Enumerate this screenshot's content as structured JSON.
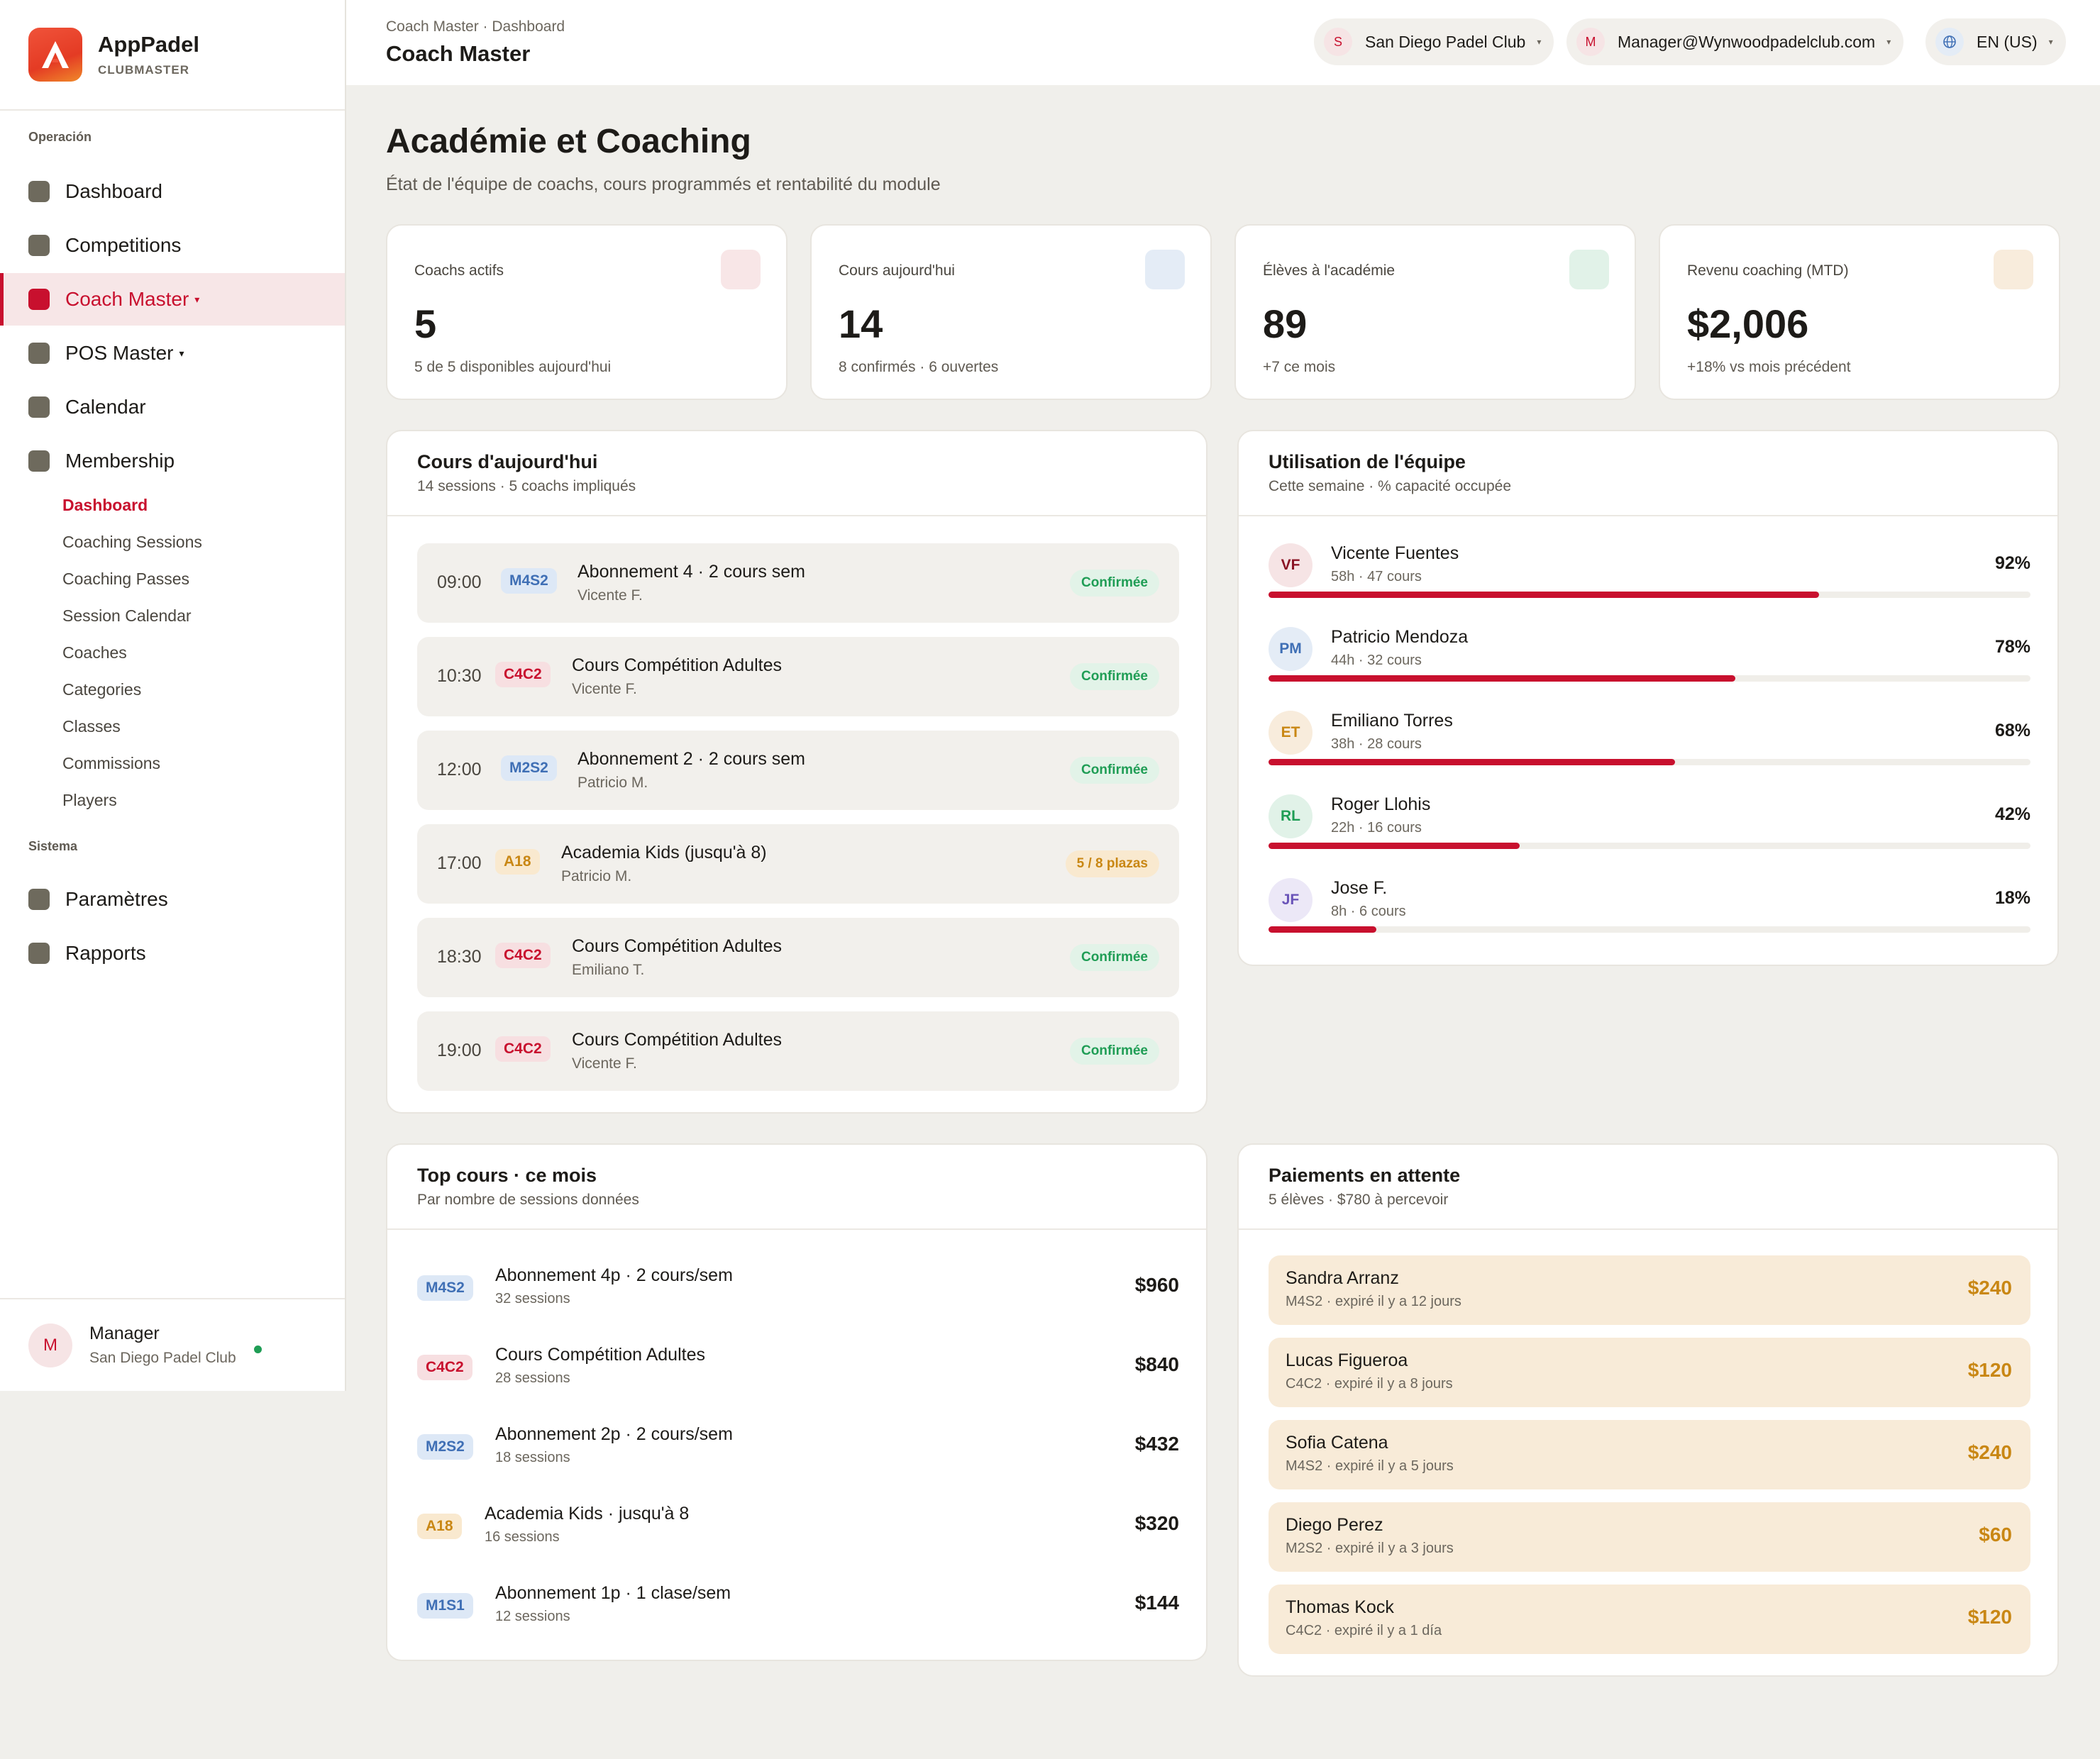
{
  "brand": {
    "name": "AppPadel",
    "sub": "CLUBMASTER"
  },
  "sidebar": {
    "section_operacion": "Operación",
    "section_sistema": "Sistema",
    "items": [
      {
        "label": "Dashboard"
      },
      {
        "label": "Competitions"
      },
      {
        "label": "Coach Master",
        "caret": "▾"
      },
      {
        "label": "POS Master",
        "caret": "▾"
      },
      {
        "label": "Calendar"
      },
      {
        "label": "Membership"
      }
    ],
    "sub_items": [
      "Dashboard",
      "Coaching Sessions",
      "Coaching Passes",
      "Session Calendar",
      "Coaches",
      "Categories",
      "Classes",
      "Commissions",
      "Players"
    ],
    "system_items": [
      {
        "label": "Paramètres"
      },
      {
        "label": "Rapports"
      }
    ],
    "user": {
      "initial": "M",
      "name": "Manager",
      "club": "San Diego Padel Club"
    }
  },
  "header": {
    "breadcrumb": "Coach Master · Dashboard",
    "title": "Coach Master",
    "club": {
      "initial": "S",
      "label": "San Diego Padel Club"
    },
    "account": {
      "initial": "M",
      "label": "Manager@Wynwoodpadelclub.com"
    },
    "language": {
      "icon": "globe-icon",
      "label": "EN (US)"
    },
    "caret": "▾"
  },
  "page": {
    "title": "Académie et Coaching",
    "subtitle": "État de l'équipe de coachs, cours programmés et rentabilité du module"
  },
  "stats": [
    {
      "label": "Coachs actifs",
      "value": "5",
      "sub": "5 de 5 disponibles aujourd'hui",
      "color": "#f8e6e7"
    },
    {
      "label": "Cours aujourd'hui",
      "value": "14",
      "sub": "8 confirmés · 6 ouvertes",
      "color": "#e4ecf6"
    },
    {
      "label": "Élèves à l'académie",
      "value": "89",
      "sub": "+7 ce mois",
      "color": "#e1f2e8"
    },
    {
      "label": "Revenu coaching (MTD)",
      "value": "$2,006",
      "sub": "+18% vs mois précédent",
      "color": "#f8ecdc"
    }
  ],
  "today": {
    "title": "Cours d'aujourd'hui",
    "subtitle": "14 sessions · 5 coachs impliqués",
    "lessons": [
      {
        "time": "09:00",
        "code": "M4S2",
        "tone": "blue",
        "name": "Abonnement 4 · 2 cours sem",
        "coach": "Vicente F.",
        "status": "Confirmée",
        "state": "ok"
      },
      {
        "time": "10:30",
        "code": "C4C2",
        "tone": "red",
        "name": "Cours Compétition Adultes",
        "coach": "Vicente F.",
        "status": "Confirmée",
        "state": "ok"
      },
      {
        "time": "12:00",
        "code": "M2S2",
        "tone": "blue",
        "name": "Abonnement 2 · 2 cours sem",
        "coach": "Patricio M.",
        "status": "Confirmée",
        "state": "ok"
      },
      {
        "time": "17:00",
        "code": "A18",
        "tone": "amber",
        "name": "Academia Kids (jusqu'à 8)",
        "coach": "Patricio M.",
        "status": "5 / 8 plazas",
        "state": "warn"
      },
      {
        "time": "18:30",
        "code": "C4C2",
        "tone": "red",
        "name": "Cours Compétition Adultes",
        "coach": "Emiliano T.",
        "status": "Confirmée",
        "state": "ok"
      },
      {
        "time": "19:00",
        "code": "C4C2",
        "tone": "red",
        "name": "Cours Compétition Adultes",
        "coach": "Vicente F.",
        "status": "Confirmée",
        "state": "ok"
      }
    ]
  },
  "utilization": {
    "title": "Utilisation de l'équipe",
    "subtitle": "Cette semaine · % capacité occupée",
    "coaches": [
      {
        "initials": "VF",
        "name": "Vicente Fuentes",
        "meta": "58h · 47 cours",
        "pct": 92,
        "pct_label": "92%",
        "bg": "#f6e4e5",
        "fg": "#8a1324"
      },
      {
        "initials": "PM",
        "name": "Patricio Mendoza",
        "meta": "44h · 32 cours",
        "pct": 78,
        "pct_label": "78%",
        "bg": "#e4ecf6",
        "fg": "#3f6fb5"
      },
      {
        "initials": "ET",
        "name": "Emiliano Torres",
        "meta": "38h · 28 cours",
        "pct": 68,
        "pct_label": "68%",
        "bg": "#f8ecdc",
        "fg": "#c98714"
      },
      {
        "initials": "RL",
        "name": "Roger Llohis",
        "meta": "22h · 16 cours",
        "pct": 42,
        "pct_label": "42%",
        "bg": "#e1f2e8",
        "fg": "#1f9d55"
      },
      {
        "initials": "JF",
        "name": "Jose F.",
        "meta": "8h · 6 cours",
        "pct": 18,
        "pct_label": "18%",
        "bg": "#ece8f7",
        "fg": "#6a54b8"
      }
    ]
  },
  "top_courses": {
    "title": "Top cours · ce mois",
    "subtitle": "Par nombre de sessions données",
    "items": [
      {
        "code": "M4S2",
        "tone": "blue",
        "name": "Abonnement 4p · 2 cours/sem",
        "sessions": "32 sessions",
        "value": "$960"
      },
      {
        "code": "C4C2",
        "tone": "red",
        "name": "Cours Compétition Adultes",
        "sessions": "28 sessions",
        "value": "$840"
      },
      {
        "code": "M2S2",
        "tone": "blue",
        "name": "Abonnement 2p · 2 cours/sem",
        "sessions": "18 sessions",
        "value": "$432"
      },
      {
        "code": "A18",
        "tone": "amber",
        "name": "Academia Kids · jusqu'à 8",
        "sessions": "16 sessions",
        "value": "$320"
      },
      {
        "code": "M1S1",
        "tone": "blue",
        "name": "Abonnement 1p · 1 clase/sem",
        "sessions": "12 sessions",
        "value": "$144"
      }
    ]
  },
  "payments": {
    "title": "Paiements en attente",
    "subtitle": "5 élèves · $780 à percevoir",
    "items": [
      {
        "name": "Sandra Arranz",
        "meta": "M4S2 · expiré il y a 12 jours",
        "amount": "$240"
      },
      {
        "name": "Lucas Figueroa",
        "meta": "C4C2 · expiré il y a 8 jours",
        "amount": "$120"
      },
      {
        "name": "Sofia Catena",
        "meta": "M4S2 · expiré il y a 5 jours",
        "amount": "$240"
      },
      {
        "name": "Diego Perez",
        "meta": "M2S2 · expiré il y a 3 jours",
        "amount": "$60"
      },
      {
        "name": "Thomas Kock",
        "meta": "C4C2 · expiré il y a 1 día",
        "amount": "$120"
      }
    ]
  },
  "colors": {
    "accent": "#c8102e",
    "success": "#1f9d55",
    "warning": "#c98714",
    "info": "#3f6fb5"
  }
}
